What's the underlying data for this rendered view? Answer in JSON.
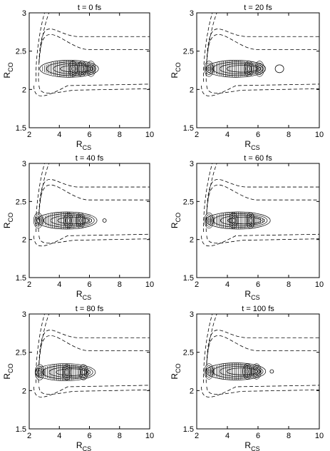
{
  "chart_data": [
    {
      "type": "contour",
      "title": "t = 0 fs",
      "xlabel": "R",
      "xlabel_sub": "CS",
      "ylabel": "R",
      "ylabel_sub": "CO",
      "xlim": [
        2,
        10
      ],
      "ylim": [
        1.5,
        3
      ],
      "xticks": [
        "2",
        "4",
        "6",
        "8",
        "10"
      ],
      "yticks": [
        "1.5",
        "2",
        "2.5",
        "3"
      ],
      "packet": {
        "x_start": 2.7,
        "x_end": 6.6,
        "y_center": 2.27,
        "peaks_x": [
          4.9,
          5.5,
          6.1
        ]
      }
    },
    {
      "type": "contour",
      "title": "t = 20 fs",
      "xlabel": "R",
      "xlabel_sub": "CS",
      "ylabel": "R",
      "ylabel_sub": "CO",
      "xlim": [
        2,
        10
      ],
      "ylim": [
        1.5,
        3
      ],
      "xticks": [
        "2",
        "4",
        "6",
        "8",
        "10"
      ],
      "yticks": [
        "1.5",
        "2",
        "2.5",
        "3"
      ],
      "packet": {
        "x_start": 2.6,
        "x_end": 6.5,
        "y_center": 2.27,
        "peaks_x": [
          2.8,
          5.4,
          6.1
        ],
        "island_x": 7.4
      }
    },
    {
      "type": "contour",
      "title": "t = 40 fs",
      "xlabel": "R",
      "xlabel_sub": "CS",
      "ylabel": "R",
      "ylabel_sub": "CO",
      "xlim": [
        2,
        10
      ],
      "ylim": [
        1.5,
        3
      ],
      "xticks": [
        "2",
        "4",
        "6",
        "8",
        "10"
      ],
      "yticks": [
        "1.5",
        "2",
        "2.5",
        "3"
      ],
      "packet": {
        "x_start": 2.5,
        "x_end": 6.5,
        "y_center": 2.25,
        "peaks_x": [
          2.6,
          4.6,
          5.4
        ],
        "island_x": 7.0
      }
    },
    {
      "type": "contour",
      "title": "t = 60 fs",
      "xlabel": "R",
      "xlabel_sub": "CS",
      "ylabel": "R",
      "ylabel_sub": "CO",
      "xlim": [
        2,
        10
      ],
      "ylim": [
        1.5,
        3
      ],
      "xticks": [
        "2",
        "4",
        "6",
        "8",
        "10"
      ],
      "yticks": [
        "1.5",
        "2",
        "2.5",
        "3"
      ],
      "packet": {
        "x_start": 2.6,
        "x_end": 6.8,
        "y_center": 2.25,
        "peaks_x": [
          2.8,
          4.4,
          5.5
        ]
      }
    },
    {
      "type": "contour",
      "title": "t = 80 fs",
      "xlabel": "R",
      "xlabel_sub": "CS",
      "ylabel": "R",
      "ylabel_sub": "CO",
      "xlim": [
        2,
        10
      ],
      "ylim": [
        1.5,
        3
      ],
      "xticks": [
        "2",
        "4",
        "6",
        "8",
        "10"
      ],
      "yticks": [
        "1.5",
        "2",
        "2.5",
        "3"
      ],
      "packet": {
        "x_start": 2.4,
        "x_end": 6.4,
        "y_center": 2.24,
        "peaks_x": [
          2.7,
          4.5,
          5.6
        ]
      }
    },
    {
      "type": "contour",
      "title": "t = 100 fs",
      "xlabel": "R",
      "xlabel_sub": "CS",
      "ylabel": "R",
      "ylabel_sub": "CO",
      "xlim": [
        2,
        10
      ],
      "ylim": [
        1.5,
        3
      ],
      "xticks": [
        "2",
        "4",
        "6",
        "8",
        "10"
      ],
      "yticks": [
        "1.5",
        "2",
        "2.5",
        "3"
      ],
      "packet": {
        "x_start": 2.6,
        "x_end": 6.5,
        "y_center": 2.25,
        "peaks_x": [
          2.8,
          5.3,
          5.9
        ],
        "island_x": 6.9
      }
    }
  ],
  "potential_contours": {
    "upper": [
      {
        "y_inf": 2.69,
        "x_knee": 4.2
      },
      {
        "y_inf": 2.52,
        "x_knee": 4.9
      }
    ],
    "lower": [
      {
        "y_inf": 2.07,
        "x_knee": 2.35,
        "y_min": 1.88
      },
      {
        "y_inf": 2.01,
        "x_knee": 2.7,
        "y_min": 1.94
      }
    ]
  }
}
